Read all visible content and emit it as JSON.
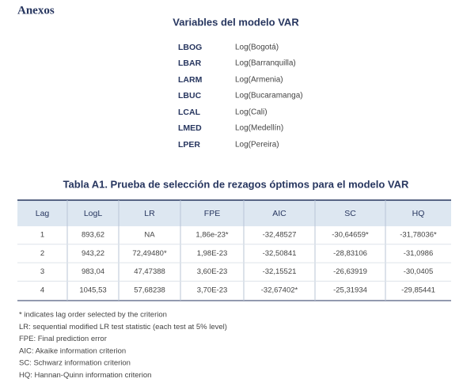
{
  "header": {
    "title": "Anexos"
  },
  "variables": {
    "title": "Variables del modelo VAR",
    "items": [
      {
        "code": "LBOG",
        "label": "Log(Bogotá)"
      },
      {
        "code": "LBAR",
        "label": "Log(Barranquilla)"
      },
      {
        "code": "LARM",
        "label": "Log(Armenia)"
      },
      {
        "code": "LBUC",
        "label": "Log(Bucaramanga)"
      },
      {
        "code": "LCAL",
        "label": "Log(Cali)"
      },
      {
        "code": "LMED",
        "label": "Log(Medellín)"
      },
      {
        "code": "LPER",
        "label": "Log(Pereira)"
      }
    ]
  },
  "table": {
    "title": "Tabla A1. Prueba de selección de rezagos óptimos para el modelo VAR",
    "headers": [
      "Lag",
      "LogL",
      "LR",
      "FPE",
      "AIC",
      "SC",
      "HQ"
    ],
    "rows": [
      [
        "1",
        "893,62",
        "NA",
        "1,86e-23*",
        "-32,48527",
        "-30,64659*",
        "-31,78036*"
      ],
      [
        "2",
        "943,22",
        "72,49480*",
        "1,98E-23",
        "-32,50841",
        "-28,83106",
        "-31,0986"
      ],
      [
        "3",
        "983,04",
        "47,47388",
        "3,60E-23",
        "-32,15521",
        "-26,63919",
        "-30,0405"
      ],
      [
        "4",
        "1045,53",
        "57,68238",
        "3,70E-23",
        "-32,67402*",
        "-25,31934",
        "-29,85441"
      ]
    ]
  },
  "notes": [
    "* indicates lag order selected by the criterion",
    "LR: sequential modified LR test statistic (each test at 5% level)",
    "FPE: Final prediction error",
    "AIC: Akaike information criterion",
    "SC: Schwarz information criterion",
    "HQ: Hannan-Quinn information criterion"
  ]
}
